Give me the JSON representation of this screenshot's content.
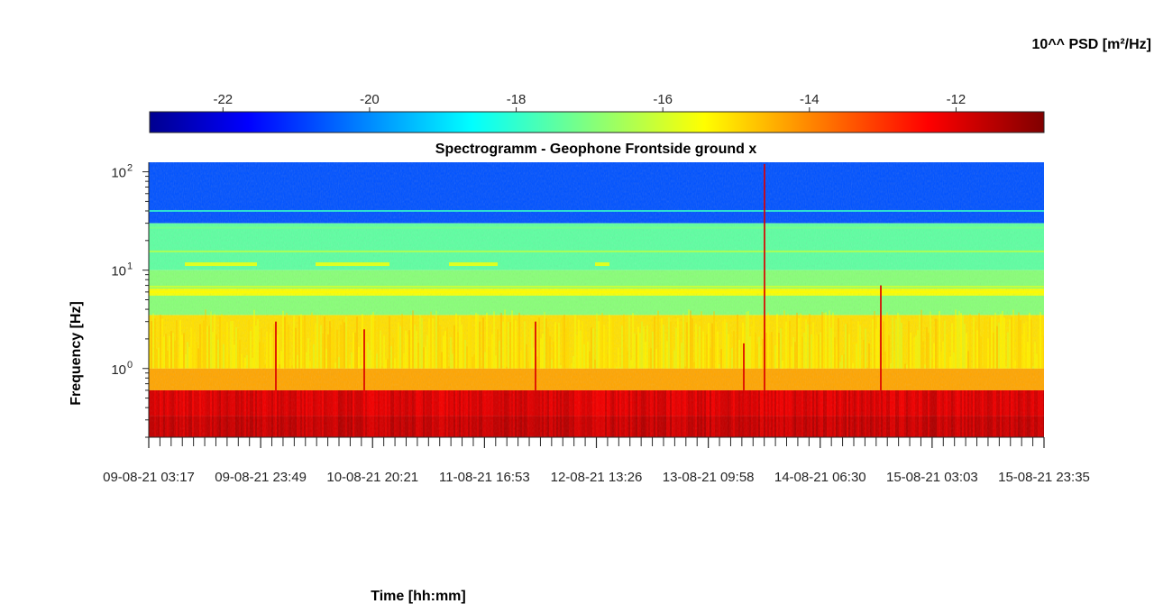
{
  "chart_data": {
    "type": "heatmap",
    "title": "Spectrogramm - Geophone Frontside ground x",
    "xlabel": "Time [hh:mm]",
    "ylabel": "Frequency [Hz]",
    "colorbar": {
      "label": "10^^ PSD [m²/Hz]",
      "range": [
        -23,
        -10.8
      ],
      "ticks": [
        -22,
        -20,
        -18,
        -16,
        -14,
        -12
      ],
      "tick_labels": [
        "-22",
        "-20",
        "-18",
        "-16",
        "-14",
        "-12"
      ],
      "colormap": "jet"
    },
    "x_ticks": [
      "09-08-21 03:17",
      "09-08-21 23:49",
      "10-08-21 20:21",
      "11-08-21 16:53",
      "12-08-21 13:26",
      "13-08-21 09:58",
      "14-08-21 06:30",
      "15-08-21 03:03",
      "15-08-21 23:35"
    ],
    "xlim": [
      "09-08-21 03:17",
      "15-08-21 23:35"
    ],
    "yscale": "log",
    "ylim": [
      0.2,
      125
    ],
    "y_ticks": [
      {
        "value": 1,
        "base": "10",
        "exp": "0"
      },
      {
        "value": 10,
        "base": "10",
        "exp": "1"
      },
      {
        "value": 100,
        "base": "10",
        "exp": "2"
      }
    ],
    "bands": [
      {
        "f_low": 0.2,
        "f_high": 0.33,
        "psd": -11.5,
        "note": "dark red, strongest low-frequency energy"
      },
      {
        "f_low": 0.33,
        "f_high": 0.6,
        "psd": -12.0
      },
      {
        "f_low": 0.6,
        "f_high": 1.0,
        "psd": -14.3
      },
      {
        "f_low": 1.0,
        "f_high": 3.5,
        "psd": -15.0
      },
      {
        "f_low": 3.5,
        "f_high": 10,
        "psd": -16.8
      },
      {
        "f_low": 5.5,
        "f_high": 6.5,
        "psd": -15.5,
        "note": "persistent line near 6 Hz"
      },
      {
        "f_low": 10,
        "f_high": 30,
        "psd": -17.3
      },
      {
        "f_low": 30,
        "f_high": 125,
        "psd": -20.5
      }
    ],
    "grid": false,
    "legend": "none"
  }
}
